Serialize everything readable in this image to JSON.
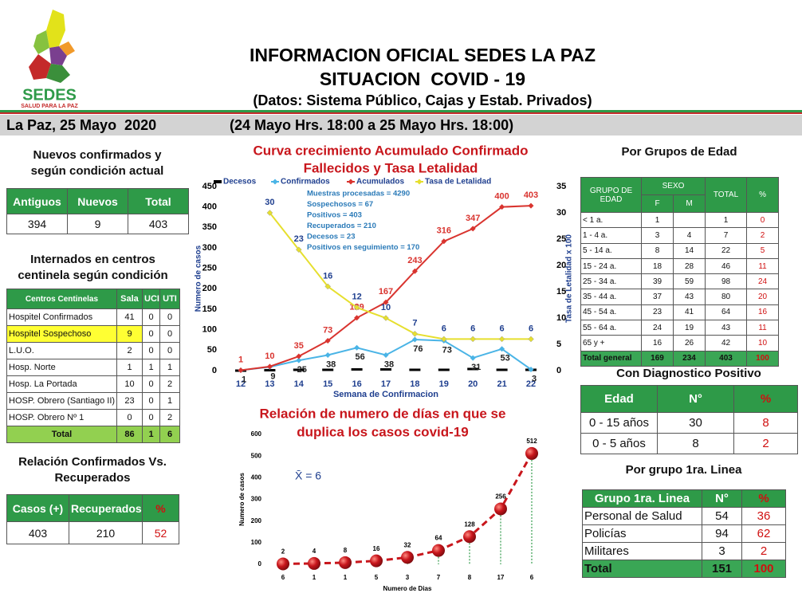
{
  "header": {
    "logo_name": "SEDES",
    "logo_tagline": "SALUD PARA LA PAZ",
    "title": "INFORMACION OFICIAL SEDES LA PAZ",
    "subtitle": "SITUACION  COVID - 19",
    "source": "(Datos: Sistema Público, Cajas y Estab. Privados)",
    "date": "La Paz, 25 Mayo  2020",
    "period": "(24 Mayo Hrs. 18:00 a 25 Mayo Hrs. 18:00)"
  },
  "tables": {
    "nuevos": {
      "title": [
        "Nuevos confirmados y",
        "según condición actual"
      ],
      "header": [
        "Antiguos",
        "Nuevos",
        "Total"
      ],
      "rows": [
        [
          394,
          9,
          403
        ]
      ]
    },
    "internados": {
      "title": [
        "Internados en centros",
        "centinela según condición"
      ],
      "header": [
        "Centros Centinelas",
        "Sala",
        "UCI",
        "UTI"
      ],
      "rows": [
        [
          "Hospitel Confirmados",
          41,
          0,
          0
        ],
        [
          "Hospitel Sospechoso",
          9,
          0,
          0
        ],
        [
          "L.U.O.",
          2,
          0,
          0
        ],
        [
          "Hosp. Norte",
          1,
          1,
          1
        ],
        [
          "Hosp. La Portada",
          10,
          0,
          2
        ],
        [
          "HOSP. Obrero (Santiago II)",
          23,
          0,
          1
        ],
        [
          "HOSP. Obrero Nº 1",
          0,
          0,
          2
        ],
        [
          "Total",
          86,
          1,
          6
        ]
      ]
    },
    "recuperados": {
      "title": [
        "Relación Confirmados Vs.",
        "Recuperados"
      ],
      "header": [
        "Casos (+)",
        "Recuperados",
        "%"
      ],
      "rows": [
        [
          403,
          210,
          52
        ]
      ]
    },
    "edad": {
      "title": [
        "Por Grupos de  Edad"
      ],
      "header": [
        "GRUPO DE EDAD",
        "SEXO",
        "TOTAL",
        "%"
      ],
      "subheader": [
        "F",
        "M"
      ],
      "rows": [
        [
          "< 1 a.",
          1,
          null,
          1,
          0
        ],
        [
          "1 - 4 a.",
          3,
          4,
          7,
          2
        ],
        [
          "5 - 14 a.",
          8,
          14,
          22,
          5
        ],
        [
          "15 - 24 a.",
          18,
          28,
          46,
          11
        ],
        [
          "25 - 34 a.",
          39,
          59,
          98,
          24
        ],
        [
          "35 - 44 a.",
          37,
          43,
          80,
          20
        ],
        [
          "45 - 54 a.",
          23,
          41,
          64,
          16
        ],
        [
          "55 - 64 a.",
          24,
          19,
          43,
          11
        ],
        [
          "65 y +",
          16,
          26,
          42,
          10
        ],
        [
          "Total general",
          169,
          234,
          403,
          100
        ]
      ]
    },
    "diagnostico": {
      "title": [
        "Con Diagnostico Positivo"
      ],
      "header": [
        "Edad",
        "N°",
        "%"
      ],
      "rows": [
        [
          "0 - 15 años",
          30,
          8
        ],
        [
          "0 - 5 años",
          8,
          2
        ]
      ]
    },
    "primera_linea": {
      "title": [
        "Por grupo 1ra. Linea"
      ],
      "header": [
        "Grupo 1ra. Linea",
        "N°",
        "%"
      ],
      "rows": [
        [
          "Personal de Salud",
          54,
          36
        ],
        [
          "Policías",
          94,
          62
        ],
        [
          "Militares",
          3,
          2
        ],
        [
          "Total",
          151,
          100
        ]
      ]
    }
  },
  "chart_data": [
    {
      "type": "line",
      "title": [
        "Curva crecimiento Acumulado Confirmado",
        "Fallecidos y Tasa Letalidad"
      ],
      "x_label": "Semana de Confirmacion",
      "y_label": "Numero de casos",
      "y2_label": "Tasa de Letalidad x 100",
      "categories": [
        12,
        13,
        14,
        15,
        16,
        17,
        18,
        19,
        20,
        21,
        22
      ],
      "series": [
        {
          "name": "Decesos",
          "color": "#000000",
          "values": [
            0,
            1,
            2,
            2,
            3,
            3,
            2,
            2,
            4,
            2,
            2
          ]
        },
        {
          "name": "Confirmados",
          "color": "#4ab4e6",
          "values": [
            1,
            9,
            25,
            38,
            56,
            38,
            76,
            73,
            31,
            53,
            3
          ]
        },
        {
          "name": "Acumulados",
          "color": "#d9342f",
          "values": [
            1,
            10,
            35,
            73,
            129,
            167,
            243,
            316,
            347,
            400,
            403
          ]
        },
        {
          "name": "Tasa de Letalidad",
          "color": "#e6df2e",
          "axis": "y2",
          "values": [
            null,
            30,
            23,
            16,
            12,
            10,
            7,
            6,
            6,
            6,
            6
          ]
        }
      ],
      "ylim": [
        0,
        450
      ],
      "yticks": [
        0,
        50,
        100,
        150,
        200,
        250,
        300,
        350,
        400,
        450
      ],
      "y2lim": [
        0,
        35
      ],
      "y2ticks": [
        0,
        5,
        10,
        15,
        20,
        25,
        30,
        35
      ],
      "annotations": [
        "Muestras procesadas = 4290",
        "Sospechosos  = 67",
        "Positivos = 403",
        "Recuperados = 210",
        "Decesos = 23",
        "Positivos en seguimiento = 170"
      ]
    },
    {
      "type": "scatter-line",
      "title": [
        "Relación de numero de días en que se",
        "duplica los casos covid-19"
      ],
      "x_label": "Numero de Dias",
      "y_label": "Numero de casos",
      "annotation": "X̄ = 6",
      "categories": [
        6,
        1,
        1,
        5,
        3,
        7,
        8,
        17,
        6
      ],
      "values": [
        2,
        4,
        8,
        16,
        32,
        64,
        128,
        256,
        512
      ],
      "color": "#c8161c",
      "ylim": [
        0,
        600
      ],
      "yticks": [
        0,
        100,
        200,
        300,
        400,
        500,
        600
      ]
    }
  ]
}
